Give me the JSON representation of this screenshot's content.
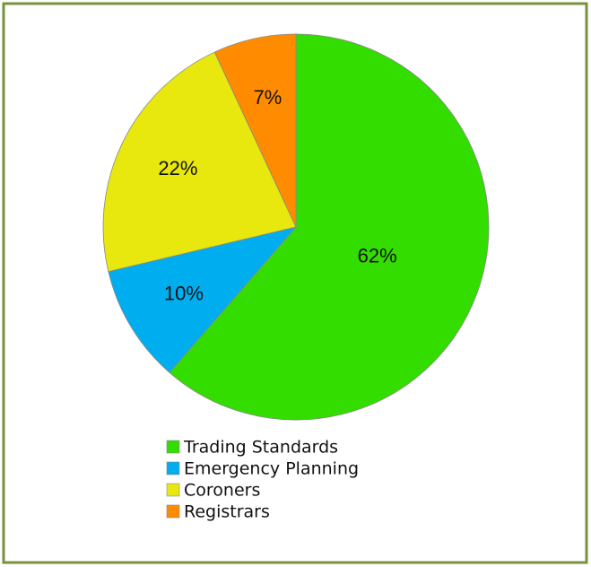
{
  "chart_data": {
    "type": "pie",
    "categories": [
      "Trading Standards",
      "Emergency Planning",
      "Coroners",
      "Registrars"
    ],
    "values": [
      62,
      10,
      22,
      7
    ],
    "value_labels": [
      "62%",
      "10%",
      "22%",
      "7%"
    ],
    "colors": [
      "#33dd00",
      "#00aeef",
      "#e8e80e",
      "#ff8c00"
    ],
    "legend": "bottom"
  }
}
